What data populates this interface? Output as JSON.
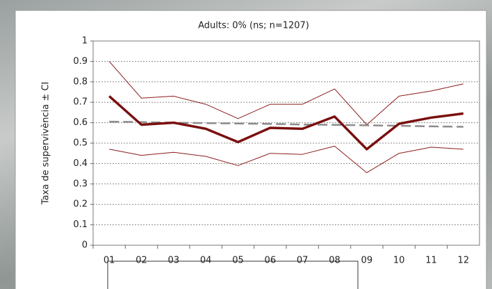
{
  "chart_data": {
    "type": "line",
    "title": "Adults: 0% (ns; n=1207)",
    "y_label": "Taxa de supervivència ± CI",
    "categories": [
      "01",
      "02",
      "03",
      "04",
      "05",
      "06",
      "07",
      "08",
      "09",
      "10",
      "11",
      "12"
    ],
    "series": [
      {
        "color": "#8b1a1a",
        "width": 1,
        "dash": false,
        "values": [
          0.9,
          0.72,
          0.73,
          0.69,
          0.62,
          0.69,
          0.69,
          0.765,
          0.59,
          0.73,
          0.755,
          0.79
        ]
      },
      {
        "color": "#8b1a1a",
        "width": 1,
        "dash": false,
        "values": [
          0.47,
          0.44,
          0.455,
          0.435,
          0.39,
          0.45,
          0.445,
          0.485,
          0.355,
          0.45,
          0.48,
          0.47
        ]
      },
      {
        "color": "#8c8c8c",
        "width": 2.5,
        "dash": true,
        "values": [
          0.605,
          0.603,
          0.6,
          0.598,
          0.596,
          0.594,
          0.591,
          0.589,
          0.587,
          0.585,
          0.582,
          0.58
        ]
      },
      {
        "color": "#7a0f0f",
        "width": 3.5,
        "dash": false,
        "values": [
          0.73,
          0.59,
          0.6,
          0.57,
          0.505,
          0.575,
          0.57,
          0.63,
          0.47,
          0.595,
          0.625,
          0.645
        ]
      }
    ],
    "ylim": [
      0,
      1
    ],
    "yticks": [
      0,
      0.1,
      0.2,
      0.3,
      0.4,
      0.5,
      0.6,
      0.7,
      0.8,
      0.9,
      1
    ],
    "grid": true
  }
}
